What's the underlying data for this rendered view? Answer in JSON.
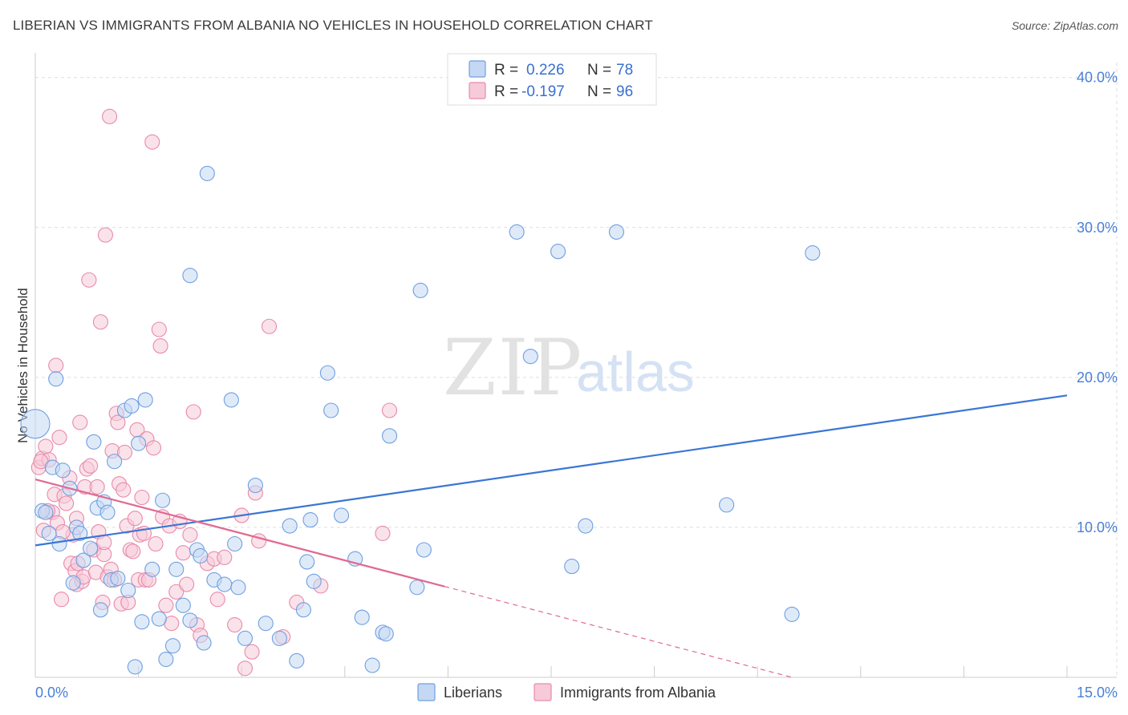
{
  "title": "LIBERIAN VS IMMIGRANTS FROM ALBANIA NO VEHICLES IN HOUSEHOLD CORRELATION CHART",
  "source": "Source: ZipAtlas.com",
  "colors": {
    "blue": "#6f9fe0",
    "blue_fill": "#c4d8f4",
    "blue_line": "#3a76d4",
    "pink": "#e88aaa",
    "pink_fill": "#f6cad9",
    "pink_line": "#e06a92",
    "grid": "#dddddd",
    "axis_text": "#4a7fd4"
  },
  "chart_data": {
    "type": "scatter",
    "title": "LIBERIAN VS IMMIGRANTS FROM ALBANIA NO VEHICLES IN HOUSEHOLD CORRELATION CHART",
    "xlabel": "",
    "ylabel": "No Vehicles in Household",
    "xlim": [
      0,
      15
    ],
    "ylim": [
      0,
      40
    ],
    "x_tick_labels": [
      "0.0%",
      "15.0%"
    ],
    "y_ticks": [
      10,
      20,
      30,
      40
    ],
    "y_tick_labels": [
      "10.0%",
      "20.0%",
      "30.0%",
      "40.0%"
    ],
    "grid": true,
    "legend": {
      "position": "top-center",
      "entries": [
        {
          "r_label": "R =",
          "r_value": "0.226",
          "n_label": "N =",
          "n_value": "78"
        },
        {
          "r_label": "R =",
          "r_value": "-0.197",
          "n_label": "N =",
          "n_value": "96"
        }
      ]
    },
    "series": [
      {
        "name": "Liberians",
        "color": "blue",
        "trend": {
          "x0": 0,
          "y0": 8.8,
          "x1": 15,
          "y1": 18.8,
          "solid_to": 15
        },
        "points": [
          [
            0.0,
            16.9,
            3
          ],
          [
            0.1,
            11.1,
            1
          ],
          [
            0.15,
            11.0,
            1
          ],
          [
            0.2,
            9.6,
            1
          ],
          [
            0.25,
            14.0,
            1
          ],
          [
            0.3,
            19.9,
            1
          ],
          [
            0.35,
            8.9,
            1
          ],
          [
            0.4,
            13.8,
            1
          ],
          [
            0.5,
            12.6,
            1
          ],
          [
            0.55,
            6.3,
            1
          ],
          [
            0.6,
            10.0,
            1
          ],
          [
            0.65,
            9.6,
            1
          ],
          [
            0.7,
            7.8,
            1
          ],
          [
            0.8,
            8.6,
            1
          ],
          [
            0.85,
            15.7,
            1
          ],
          [
            0.9,
            11.3,
            1
          ],
          [
            0.95,
            4.5,
            1
          ],
          [
            1.0,
            11.7,
            1
          ],
          [
            1.05,
            11.0,
            1
          ],
          [
            1.1,
            6.5,
            1
          ],
          [
            1.15,
            14.4,
            1
          ],
          [
            1.2,
            6.6,
            1
          ],
          [
            1.3,
            17.8,
            1
          ],
          [
            1.35,
            5.8,
            1
          ],
          [
            1.4,
            18.1,
            1
          ],
          [
            1.45,
            0.7,
            1
          ],
          [
            1.5,
            15.6,
            1
          ],
          [
            1.55,
            3.7,
            1
          ],
          [
            1.6,
            18.5,
            1
          ],
          [
            1.7,
            7.2,
            1
          ],
          [
            1.8,
            3.9,
            1
          ],
          [
            1.85,
            11.8,
            1
          ],
          [
            1.9,
            1.2,
            1
          ],
          [
            2.0,
            2.1,
            1
          ],
          [
            2.05,
            7.2,
            1
          ],
          [
            2.15,
            4.8,
            1
          ],
          [
            2.25,
            3.8,
            1
          ],
          [
            2.25,
            26.8,
            1
          ],
          [
            2.35,
            8.5,
            1
          ],
          [
            2.4,
            8.1,
            1
          ],
          [
            2.45,
            2.3,
            1
          ],
          [
            2.5,
            33.6,
            1
          ],
          [
            2.6,
            6.5,
            1
          ],
          [
            2.75,
            6.2,
            1
          ],
          [
            2.85,
            18.5,
            1
          ],
          [
            2.9,
            8.9,
            1
          ],
          [
            2.95,
            6.0,
            1
          ],
          [
            3.05,
            2.6,
            1
          ],
          [
            3.2,
            12.8,
            1
          ],
          [
            3.35,
            3.6,
            1
          ],
          [
            3.55,
            2.6,
            1
          ],
          [
            3.7,
            10.1,
            1
          ],
          [
            3.8,
            1.1,
            1
          ],
          [
            3.9,
            4.5,
            1
          ],
          [
            3.95,
            7.7,
            1
          ],
          [
            4.0,
            10.5,
            1
          ],
          [
            4.05,
            6.4,
            1
          ],
          [
            4.25,
            20.3,
            1
          ],
          [
            4.3,
            17.8,
            1
          ],
          [
            4.45,
            10.8,
            1
          ],
          [
            4.65,
            7.9,
            1
          ],
          [
            4.75,
            4.0,
            1
          ],
          [
            4.9,
            0.8,
            1
          ],
          [
            5.05,
            3.0,
            1
          ],
          [
            5.1,
            2.9,
            1
          ],
          [
            5.15,
            16.1,
            1
          ],
          [
            5.55,
            6.0,
            1
          ],
          [
            5.6,
            25.8,
            1
          ],
          [
            5.65,
            8.5,
            1
          ],
          [
            7.0,
            29.7,
            1
          ],
          [
            7.2,
            21.4,
            1
          ],
          [
            7.6,
            28.4,
            1
          ],
          [
            7.8,
            7.4,
            1
          ],
          [
            8.0,
            10.1,
            1
          ],
          [
            8.45,
            29.7,
            1
          ],
          [
            10.05,
            11.5,
            1
          ],
          [
            11.0,
            4.2,
            1
          ],
          [
            11.3,
            28.3,
            1
          ]
        ]
      },
      {
        "name": "Immigrants from Albania",
        "color": "pink",
        "trend": {
          "x0": 0,
          "y0": 13.2,
          "x1": 11.0,
          "y1": 0.0,
          "solid_to": 5.95
        },
        "points": [
          [
            0.05,
            14.0,
            1
          ],
          [
            0.1,
            14.6,
            1
          ],
          [
            0.12,
            9.8,
            1
          ],
          [
            0.15,
            15.4,
            1
          ],
          [
            0.2,
            14.5,
            1
          ],
          [
            0.25,
            11.0,
            1
          ],
          [
            0.28,
            12.2,
            1
          ],
          [
            0.3,
            20.8,
            1
          ],
          [
            0.32,
            10.3,
            1
          ],
          [
            0.35,
            16.0,
            1
          ],
          [
            0.38,
            5.2,
            1
          ],
          [
            0.42,
            12.1,
            1
          ],
          [
            0.45,
            11.6,
            1
          ],
          [
            0.5,
            13.3,
            1
          ],
          [
            0.52,
            7.6,
            1
          ],
          [
            0.55,
            9.5,
            1
          ],
          [
            0.58,
            7.1,
            1
          ],
          [
            0.6,
            6.2,
            1
          ],
          [
            0.62,
            7.6,
            1
          ],
          [
            0.65,
            17.0,
            1
          ],
          [
            0.68,
            6.4,
            1
          ],
          [
            0.7,
            6.7,
            1
          ],
          [
            0.72,
            12.7,
            1
          ],
          [
            0.75,
            13.9,
            1
          ],
          [
            0.78,
            26.5,
            1
          ],
          [
            0.8,
            14.1,
            1
          ],
          [
            0.85,
            8.5,
            1
          ],
          [
            0.88,
            7.0,
            1
          ],
          [
            0.9,
            12.7,
            1
          ],
          [
            0.92,
            9.7,
            1
          ],
          [
            0.95,
            23.7,
            1
          ],
          [
            0.98,
            5.0,
            1
          ],
          [
            1.0,
            8.2,
            1
          ],
          [
            1.02,
            29.5,
            1
          ],
          [
            1.05,
            6.7,
            1
          ],
          [
            1.08,
            37.4,
            1
          ],
          [
            1.1,
            7.2,
            1
          ],
          [
            1.12,
            15.1,
            1
          ],
          [
            1.15,
            6.5,
            1
          ],
          [
            1.18,
            17.6,
            1
          ],
          [
            1.2,
            17.0,
            1
          ],
          [
            1.22,
            12.9,
            1
          ],
          [
            1.25,
            4.9,
            1
          ],
          [
            1.28,
            12.5,
            1
          ],
          [
            1.3,
            15.0,
            1
          ],
          [
            1.33,
            10.1,
            1
          ],
          [
            1.35,
            5.0,
            1
          ],
          [
            1.38,
            8.5,
            1
          ],
          [
            1.42,
            8.4,
            1
          ],
          [
            1.45,
            10.6,
            1
          ],
          [
            1.48,
            16.5,
            1
          ],
          [
            1.5,
            6.5,
            1
          ],
          [
            1.52,
            9.5,
            1
          ],
          [
            1.55,
            12.0,
            1
          ],
          [
            1.58,
            9.6,
            1
          ],
          [
            1.6,
            6.5,
            1
          ],
          [
            1.62,
            15.9,
            1
          ],
          [
            1.65,
            6.5,
            1
          ],
          [
            1.7,
            35.7,
            1
          ],
          [
            1.72,
            15.3,
            1
          ],
          [
            1.75,
            8.9,
            1
          ],
          [
            1.8,
            23.2,
            1
          ],
          [
            1.82,
            22.1,
            1
          ],
          [
            1.85,
            10.7,
            1
          ],
          [
            1.9,
            4.8,
            1
          ],
          [
            1.95,
            10.1,
            1
          ],
          [
            1.98,
            3.6,
            1
          ],
          [
            2.05,
            5.7,
            1
          ],
          [
            2.1,
            10.4,
            1
          ],
          [
            2.15,
            8.3,
            1
          ],
          [
            2.2,
            6.2,
            1
          ],
          [
            2.25,
            9.5,
            1
          ],
          [
            2.3,
            17.7,
            1
          ],
          [
            2.35,
            3.5,
            1
          ],
          [
            2.4,
            2.8,
            1
          ],
          [
            2.5,
            7.6,
            1
          ],
          [
            2.6,
            7.9,
            1
          ],
          [
            2.65,
            5.2,
            1
          ],
          [
            2.75,
            8.0,
            1
          ],
          [
            2.9,
            3.5,
            1
          ],
          [
            3.0,
            10.8,
            1
          ],
          [
            3.05,
            0.6,
            1
          ],
          [
            3.15,
            1.7,
            1
          ],
          [
            3.2,
            12.3,
            1
          ],
          [
            3.25,
            9.1,
            1
          ],
          [
            3.4,
            23.4,
            1
          ],
          [
            3.6,
            2.7,
            1
          ],
          [
            3.8,
            5.0,
            1
          ],
          [
            4.15,
            6.1,
            1
          ],
          [
            5.05,
            9.6,
            1
          ],
          [
            5.15,
            17.8,
            1
          ],
          [
            0.08,
            14.4,
            1
          ],
          [
            0.18,
            11.1,
            1
          ],
          [
            0.4,
            9.7,
            1
          ],
          [
            0.6,
            10.6,
            1
          ],
          [
            1.0,
            9.0,
            1
          ]
        ]
      }
    ]
  },
  "legend_bottom": [
    "Liberians",
    "Immigrants from Albania"
  ],
  "watermark": {
    "part1": "ZIP",
    "part2": "atlas"
  }
}
